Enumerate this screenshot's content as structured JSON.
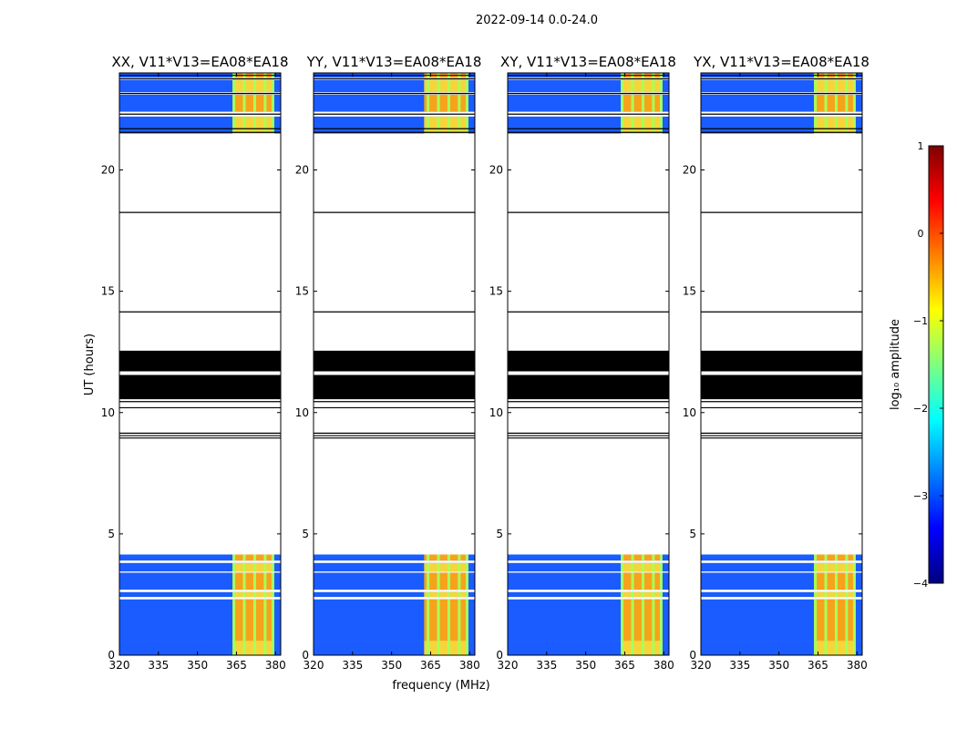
{
  "figure": {
    "suptitle": "2022-09-14 0.0-24.0",
    "xlabel": "frequency (MHz)",
    "ylabel": "UT (hours)"
  },
  "chart_data": {
    "type": "heatmap",
    "xlim": [
      320,
      382
    ],
    "ylim": [
      0,
      24
    ],
    "xticks": [
      320,
      335,
      350,
      365,
      380
    ],
    "yticks": [
      0,
      5,
      10,
      15,
      20
    ],
    "data_bands_hours": [
      [
        0,
        0.6
      ],
      [
        0.6,
        2.3
      ],
      [
        2.4,
        2.6
      ],
      [
        2.7,
        3.4
      ],
      [
        3.45,
        3.8
      ],
      [
        3.9,
        4.15
      ],
      [
        21.5,
        22.2
      ],
      [
        22.4,
        23.1
      ],
      [
        23.2,
        23.7
      ],
      [
        23.8,
        24.0
      ]
    ],
    "flagged_lines_hours": [
      8.95,
      9.05,
      9.15,
      10.2,
      10.45,
      14.15,
      18.25,
      21.55,
      21.7,
      22.3,
      23.15,
      23.75,
      23.9
    ],
    "flagged_block_hours": [
      [
        10.55,
        11.55
      ],
      [
        11.7,
        12.55
      ]
    ],
    "rfi_channels_mhz": [
      364,
      368,
      372,
      376,
      379
    ],
    "panels": [
      {
        "title": "XX, V11*V13=EA08*EA18",
        "bright_start_mhz": 363.5,
        "bright_end_mhz": 378.5
      },
      {
        "title": "YY, V11*V13=EA08*EA18",
        "bright_start_mhz": 362.5,
        "bright_end_mhz": 378.5
      },
      {
        "title": "XY, V11*V13=EA08*EA18",
        "bright_start_mhz": 363.5,
        "bright_end_mhz": 378.5
      },
      {
        "title": "YX, V11*V13=EA08*EA18",
        "bright_start_mhz": 363.5,
        "bright_end_mhz": 378.5
      }
    ],
    "colorbar": {
      "label": "log₁₀ amplitude",
      "range": [
        -4,
        1
      ],
      "ticks": [
        1,
        0,
        -1,
        -2,
        -3,
        -4
      ],
      "tick_labels": [
        "1",
        "0",
        "−1",
        "−2",
        "−3",
        "−4"
      ],
      "colormap": [
        "#00007f",
        "#0000ff",
        "#007fff",
        "#00ffff",
        "#7fff7f",
        "#ffff00",
        "#ff7f00",
        "#ff0000",
        "#7f0000"
      ]
    }
  }
}
